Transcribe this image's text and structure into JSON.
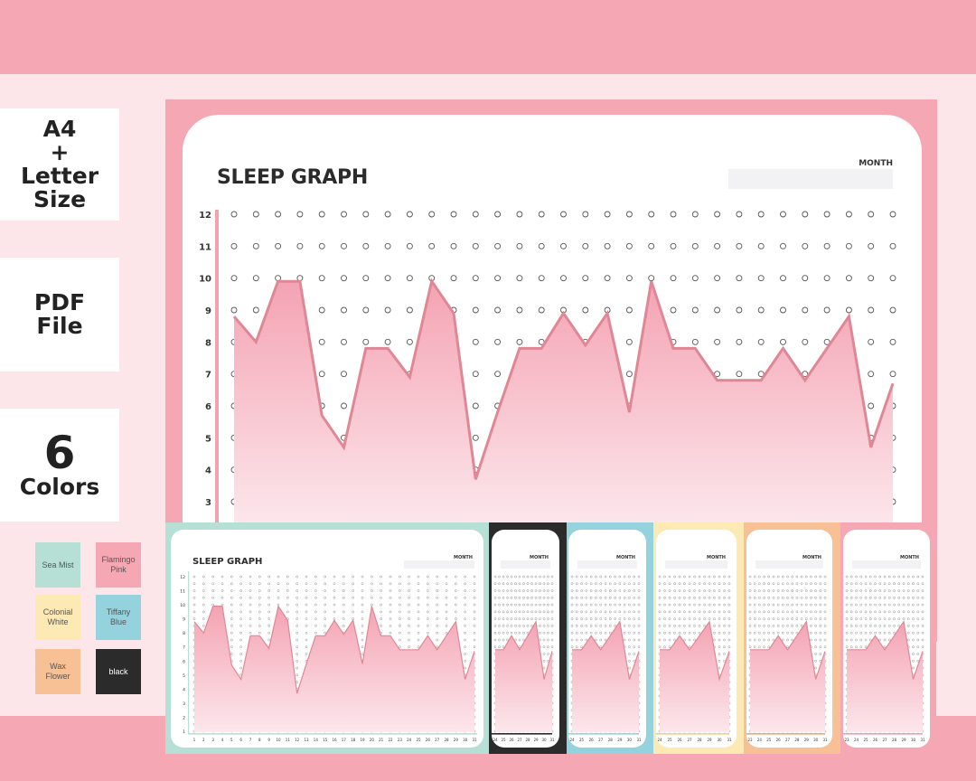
{
  "badges": {
    "size": "A4\n+\nLetter\nSize",
    "format": "PDF\nFile",
    "colors_number": "6",
    "colors_word": "Colors"
  },
  "swatches": [
    {
      "label": "Sea Mist",
      "color": "#b6e0d6",
      "text_color": "#555555"
    },
    {
      "label": "Flamingo\nPink",
      "color": "#f5a7b4",
      "text_color": "#555555"
    },
    {
      "label": "Colonial\nWhite",
      "color": "#fde9b4",
      "text_color": "#555555"
    },
    {
      "label": "Tiffany\nBlue",
      "color": "#94d3de",
      "text_color": "#555555"
    },
    {
      "label": "Wax\nFlower",
      "color": "#f7c095",
      "text_color": "#555555"
    },
    {
      "label": "black",
      "color": "#2b2b2b",
      "text_color": "#ffffff"
    }
  ],
  "page": {
    "title": "SLEEP GRAPH",
    "month_label": "MONTH"
  },
  "chart_data": {
    "type": "area",
    "title": "SLEEP GRAPH",
    "x": [
      1,
      2,
      3,
      4,
      5,
      6,
      7,
      8,
      9,
      10,
      11,
      12,
      13,
      14,
      15,
      16,
      17,
      18,
      19,
      20,
      21,
      22,
      23,
      24,
      25,
      26,
      27,
      28,
      29,
      30,
      31
    ],
    "y_ticks": [
      12,
      11,
      10,
      9,
      8,
      7,
      6,
      5,
      4,
      3
    ],
    "ylim": [
      3,
      12
    ],
    "series": [
      {
        "values": [
          8.8,
          8,
          9.9,
          9.9,
          5.7,
          4.7,
          7.8,
          7.8,
          6.9,
          9.9,
          8.9,
          3.7,
          5.8,
          7.8,
          7.8,
          8.9,
          7.9,
          8.9,
          5.8,
          9.9,
          7.8,
          7.8,
          6.8,
          6.8,
          6.8,
          7.8,
          6.8,
          7.8,
          8.8,
          4.7,
          6.7
        ]
      }
    ],
    "colors": {
      "line": "#e08796",
      "fill_top": "#f4a3b3",
      "fill_bottom": "#fce7ec",
      "axis": "#f4a1b0",
      "dot": "#555555"
    },
    "grid": "dots"
  },
  "thumbnails": [
    {
      "name": "sea-mist",
      "border": "#b6e0d6",
      "line": "#b6e0d6"
    },
    {
      "name": "black",
      "border": "#2b2b2b",
      "line": "#2b2b2b"
    },
    {
      "name": "tiffany-blue",
      "border": "#94d3de",
      "line": "#94d3de"
    },
    {
      "name": "colonial-white",
      "border": "#fde9b4",
      "line": "#f4cc7c"
    },
    {
      "name": "wax-flower",
      "border": "#f7c095",
      "line": "#f0a473"
    },
    {
      "name": "flamingo-pink",
      "border": "#f5a7b4",
      "line": "#f09aaa"
    }
  ]
}
